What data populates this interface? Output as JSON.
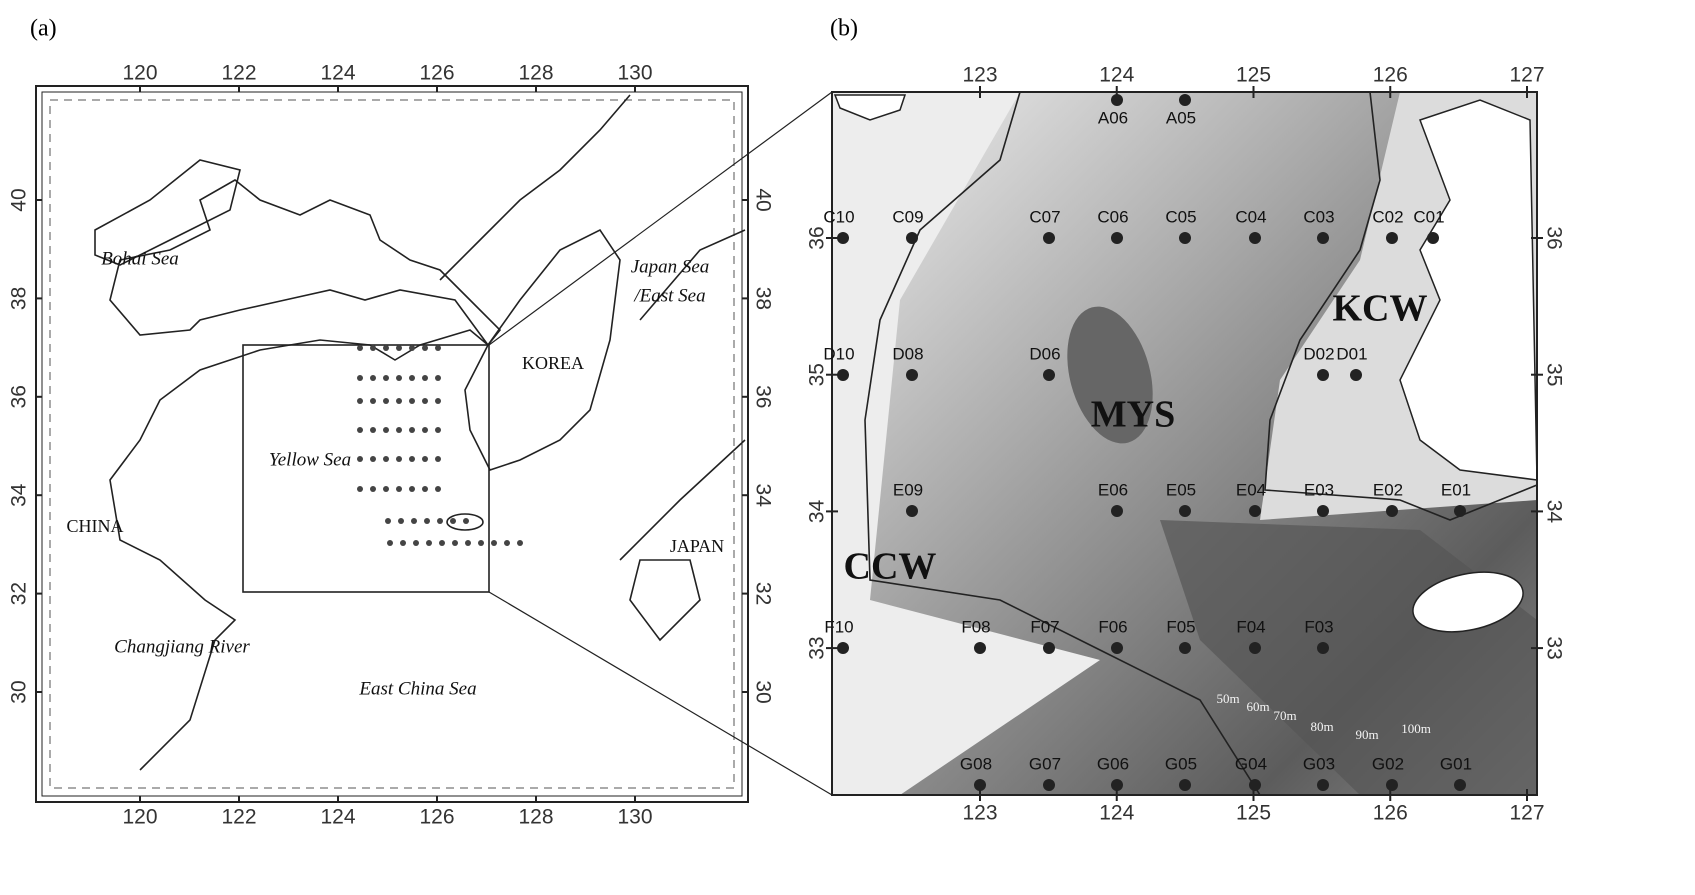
{
  "panel_a": {
    "label": "(a)",
    "lon_ticks": [
      120,
      122,
      124,
      126,
      128,
      130
    ],
    "lat_ticks": [
      40,
      38,
      36,
      34,
      32,
      30
    ],
    "places": [
      "Bohai Sea",
      "Japan Sea",
      "/East Sea",
      "KOREA",
      "Yellow Sea",
      "CHINA",
      "JAPAN",
      "Changjiang River",
      "East China Sea"
    ]
  },
  "panel_b": {
    "label": "(b)",
    "lon_ticks": [
      123,
      124,
      125,
      126,
      127
    ],
    "lat_ticks": [
      36,
      35,
      34,
      33
    ],
    "water_masses": [
      "MYS",
      "KCW",
      "CCW"
    ],
    "stations": [
      "A06",
      "A05",
      "C10",
      "C09",
      "C07",
      "C06",
      "C05",
      "C04",
      "C03",
      "C02",
      "C01",
      "D10",
      "D08",
      "D06",
      "D02",
      "D01",
      "E09",
      "E06",
      "E05",
      "E04",
      "E03",
      "E02",
      "E01",
      "F10",
      "F08",
      "F07",
      "F06",
      "F05",
      "F04",
      "F03",
      "G08",
      "G07",
      "G06",
      "G05",
      "G04",
      "G03",
      "G02",
      "G01"
    ],
    "depth_labels": [
      "50m",
      "60m",
      "70m",
      "80m",
      "90m",
      "100m"
    ]
  }
}
